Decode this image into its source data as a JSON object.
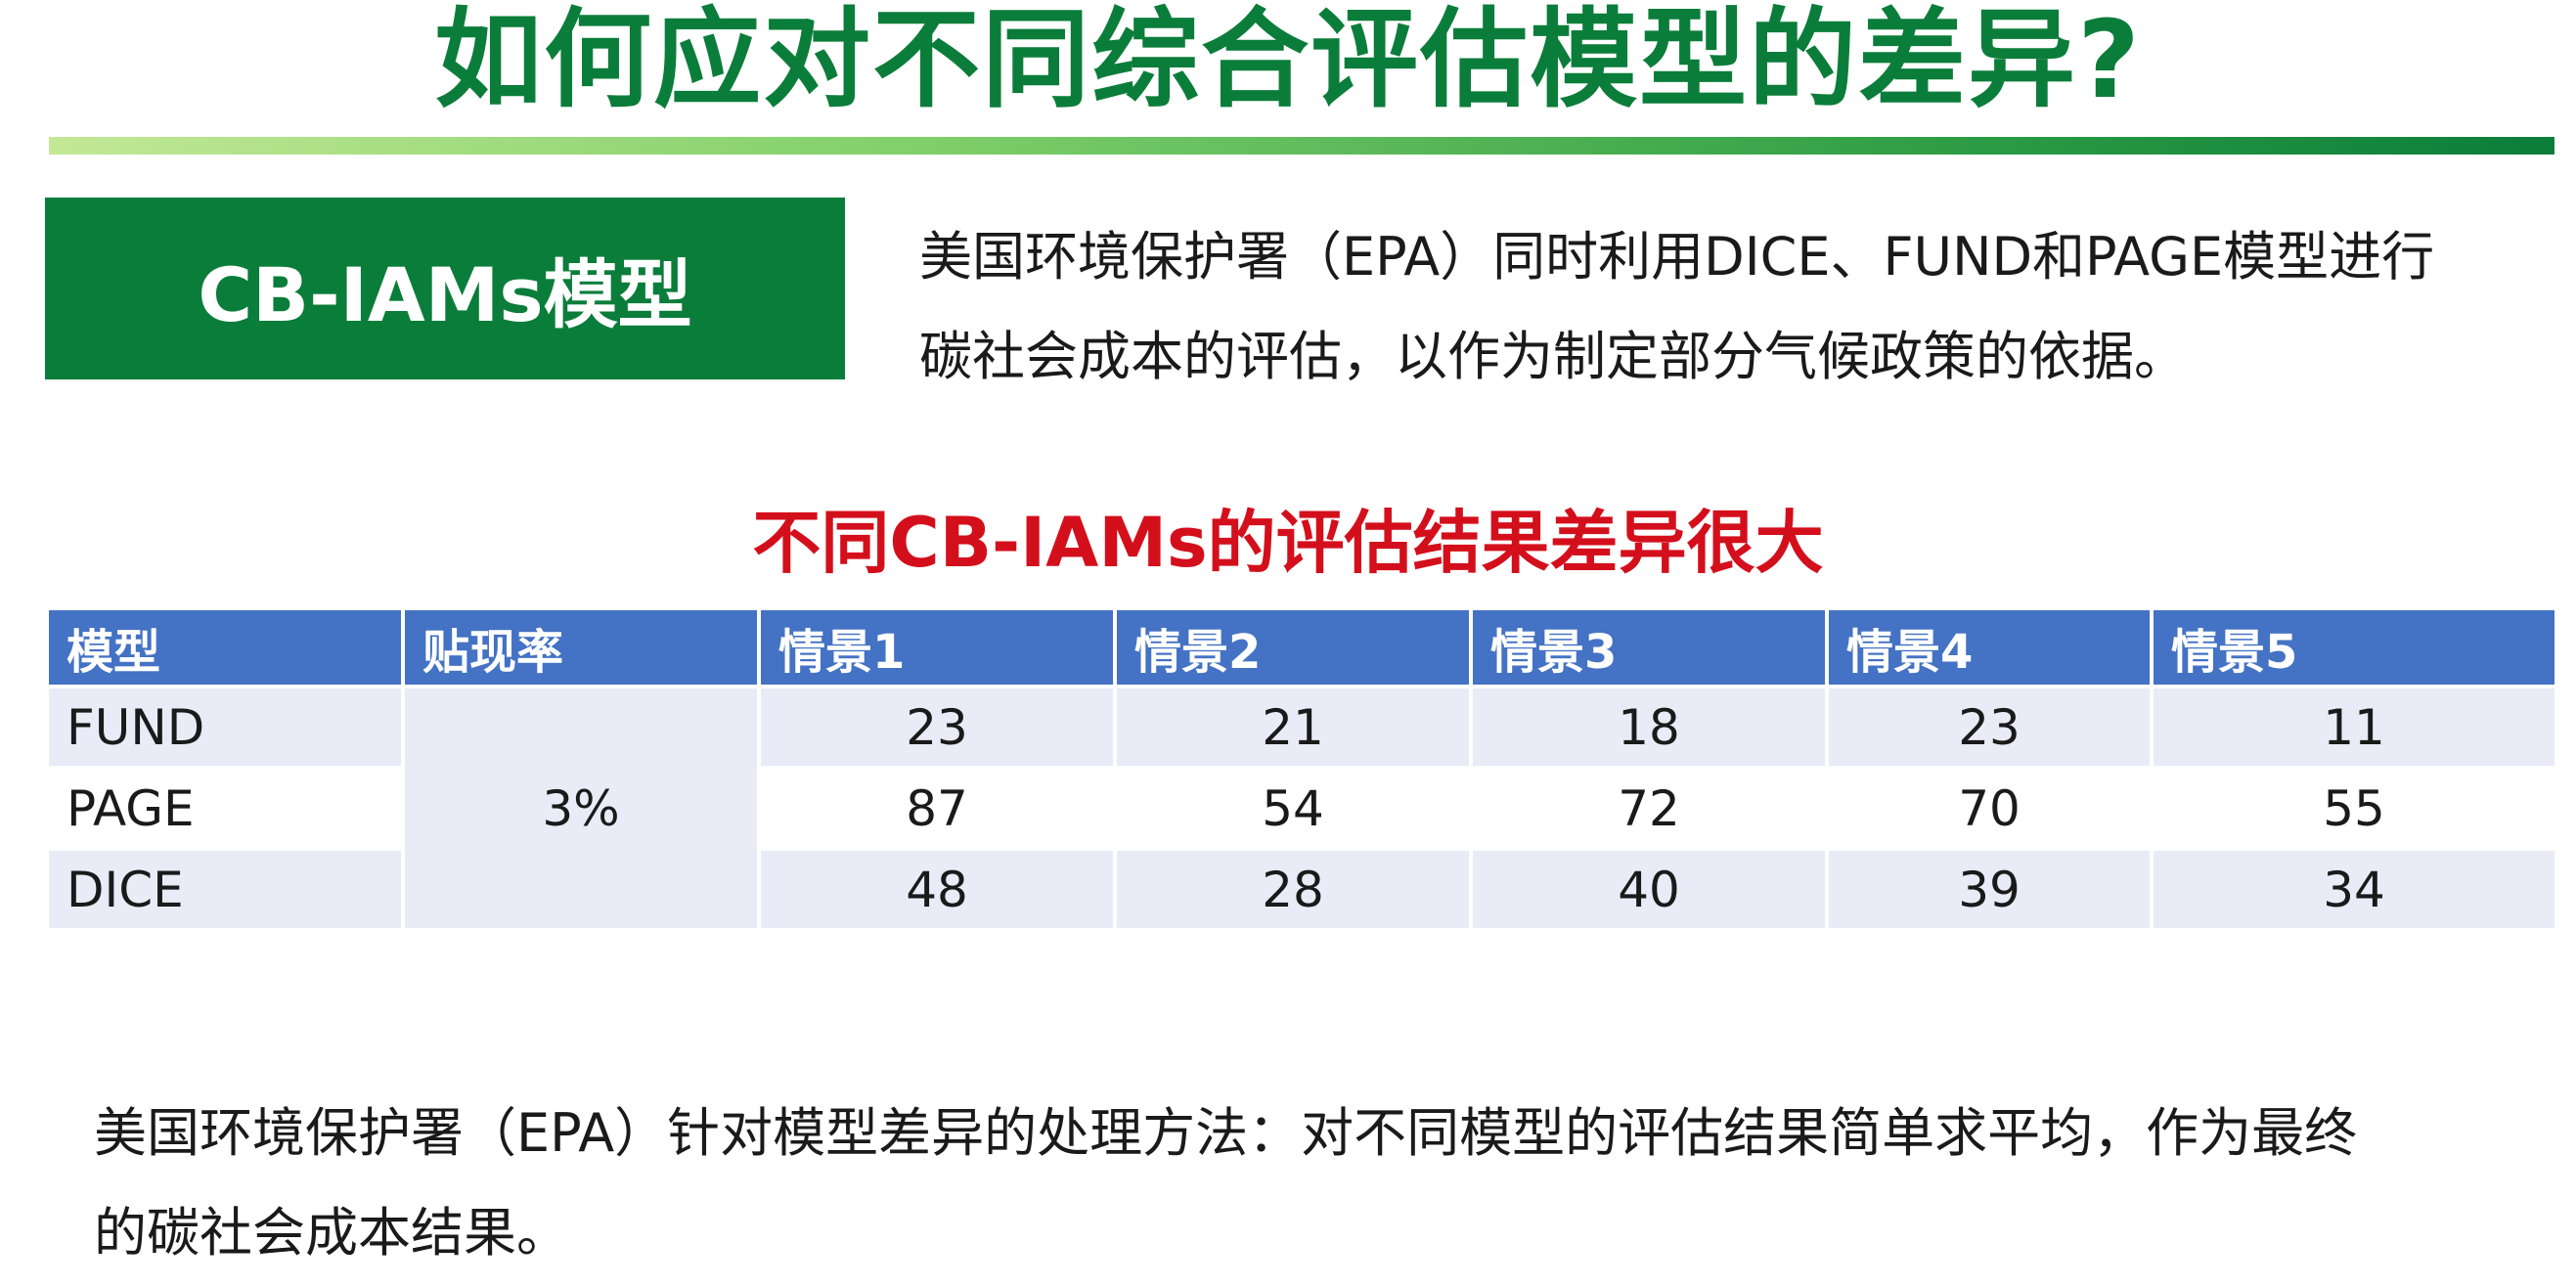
{
  "title": "如何应对不同综合评估模型的差异?",
  "model_box": {
    "label": "CB-IAMs模型"
  },
  "intro": {
    "line1": "美国环境保护署（EPA）同时利用DICE、FUND和PAGE模型进行",
    "line2": "碳社会成本的评估，以作为制定部分气候政策的依据。"
  },
  "table_title": "不同CB-IAMs的评估结果差异很大",
  "table": {
    "headers": [
      "模型",
      "贴现率",
      "情景1",
      "情景2",
      "情景3",
      "情景4",
      "情景5"
    ],
    "discount_rate": "3%",
    "rows": [
      {
        "model": "FUND",
        "values": [
          "23",
          "21",
          "18",
          "23",
          "11"
        ]
      },
      {
        "model": "PAGE",
        "values": [
          "87",
          "54",
          "72",
          "70",
          "55"
        ]
      },
      {
        "model": "DICE",
        "values": [
          "48",
          "28",
          "40",
          "39",
          "34"
        ]
      }
    ]
  },
  "footer": {
    "line1": "美国环境保护署（EPA）针对模型差异的处理方法：对不同模型的评估结果简单求平均，作为最终",
    "line2": "的碳社会成本结果。"
  },
  "colors": {
    "title_green": "#0b7d3a",
    "table_header_blue": "#4472c4",
    "table_title_red": "#d40f1c",
    "band_light": "#e9ebf7"
  }
}
